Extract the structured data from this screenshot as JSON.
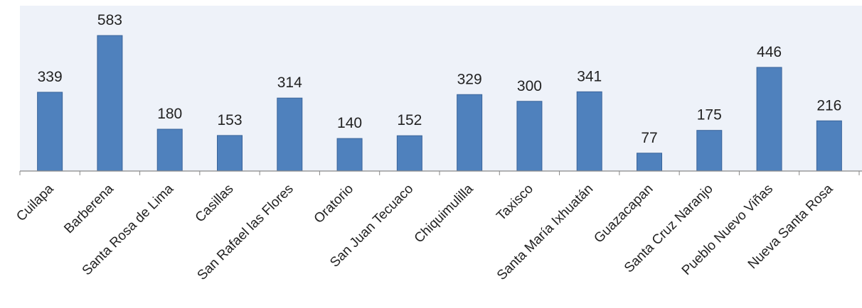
{
  "chart_data": {
    "type": "bar",
    "categories": [
      "Cuilapa",
      "Barberena",
      "Santa Rosa de Lima",
      "Casillas",
      "San Rafael las Flores",
      "Oratorio",
      "San Juan Tecuaco",
      "Chiquimulilla",
      "Taxisco",
      "Santa María Ixhuatán",
      "Guazacapan",
      "Santa Cruz Naranjo",
      "Pueblo Nuevo Viñas",
      "Nueva Santa Rosa"
    ],
    "values": [
      339,
      583,
      180,
      153,
      314,
      140,
      152,
      329,
      300,
      341,
      77,
      175,
      446,
      216
    ],
    "data_labels": [
      "339",
      "583",
      "180",
      "153",
      "314",
      "140",
      "152",
      "329",
      "300",
      "341",
      "77",
      "175",
      "446",
      "216"
    ],
    "title": "",
    "xlabel": "",
    "ylabel": "",
    "ylim": [
      0,
      700
    ],
    "grid": false,
    "legend": "none",
    "colors": {
      "bar_fill": "#4f81bd",
      "bar_stroke": "#3a649a",
      "plot_background": "#eef2f9",
      "axis": "#888888"
    }
  }
}
